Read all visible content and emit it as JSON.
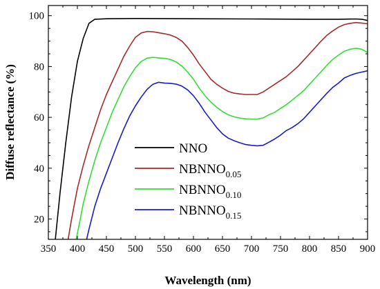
{
  "chart_data": {
    "type": "line",
    "xlabel": "Wavelength (nm)",
    "ylabel": "Diffuse reflectance (%)",
    "xlim": [
      350,
      900
    ],
    "ylim": [
      12,
      104
    ],
    "xticks": [
      350,
      400,
      450,
      500,
      550,
      600,
      650,
      700,
      750,
      800,
      850,
      900
    ],
    "yticks": [
      20,
      40,
      60,
      80,
      100
    ],
    "grid": false,
    "legend_position": "lower-center",
    "series": [
      {
        "name": "NNO",
        "name_base": "NNO",
        "name_sub": "",
        "color": "#000000",
        "points": [
          [
            362,
            12
          ],
          [
            370,
            30
          ],
          [
            380,
            50
          ],
          [
            390,
            68
          ],
          [
            400,
            82
          ],
          [
            410,
            91
          ],
          [
            420,
            97
          ],
          [
            430,
            98.6
          ],
          [
            450,
            98.8
          ],
          [
            500,
            98.9
          ],
          [
            600,
            98.8
          ],
          [
            700,
            98.7
          ],
          [
            800,
            98.6
          ],
          [
            850,
            98.6
          ],
          [
            880,
            98.7
          ],
          [
            890,
            98.6
          ],
          [
            900,
            98.1
          ]
        ]
      },
      {
        "name": "NBNNO0.05",
        "name_base": "NBNNO",
        "name_sub": "0.05",
        "color": "#a52a2a",
        "points": [
          [
            384,
            12
          ],
          [
            390,
            20
          ],
          [
            400,
            32
          ],
          [
            410,
            41
          ],
          [
            420,
            49
          ],
          [
            430,
            56
          ],
          [
            440,
            63
          ],
          [
            450,
            69
          ],
          [
            460,
            74
          ],
          [
            470,
            79
          ],
          [
            480,
            84
          ],
          [
            490,
            88
          ],
          [
            500,
            91.5
          ],
          [
            510,
            93.2
          ],
          [
            520,
            93.8
          ],
          [
            530,
            93.7
          ],
          [
            540,
            93.3
          ],
          [
            550,
            92.9
          ],
          [
            560,
            92.4
          ],
          [
            570,
            91.5
          ],
          [
            580,
            90
          ],
          [
            590,
            87.5
          ],
          [
            600,
            84.5
          ],
          [
            610,
            81
          ],
          [
            620,
            78
          ],
          [
            630,
            75
          ],
          [
            640,
            73
          ],
          [
            650,
            71.5
          ],
          [
            660,
            70.2
          ],
          [
            670,
            69.5
          ],
          [
            680,
            69.2
          ],
          [
            690,
            69
          ],
          [
            700,
            69
          ],
          [
            710,
            69
          ],
          [
            720,
            70
          ],
          [
            730,
            71.5
          ],
          [
            740,
            73
          ],
          [
            750,
            74.5
          ],
          [
            760,
            76
          ],
          [
            770,
            78
          ],
          [
            780,
            80
          ],
          [
            790,
            82.5
          ],
          [
            800,
            85
          ],
          [
            810,
            87.5
          ],
          [
            820,
            90
          ],
          [
            830,
            92.3
          ],
          [
            840,
            94
          ],
          [
            850,
            95.5
          ],
          [
            860,
            96.5
          ],
          [
            870,
            97
          ],
          [
            880,
            97.3
          ],
          [
            890,
            97.1
          ],
          [
            900,
            96.8
          ]
        ]
      },
      {
        "name": "NBNNO0.10",
        "name_base": "NBNNO",
        "name_sub": "0.10",
        "color": "#33dd33",
        "points": [
          [
            398,
            12
          ],
          [
            405,
            20
          ],
          [
            410,
            26
          ],
          [
            420,
            35
          ],
          [
            430,
            43
          ],
          [
            440,
            50
          ],
          [
            450,
            56
          ],
          [
            460,
            62
          ],
          [
            470,
            67
          ],
          [
            480,
            72
          ],
          [
            490,
            76
          ],
          [
            500,
            79.5
          ],
          [
            510,
            82
          ],
          [
            520,
            83.3
          ],
          [
            530,
            83.6
          ],
          [
            540,
            83.4
          ],
          [
            550,
            83.2
          ],
          [
            560,
            82.8
          ],
          [
            570,
            81.8
          ],
          [
            580,
            80.2
          ],
          [
            590,
            77.8
          ],
          [
            600,
            75
          ],
          [
            610,
            71.5
          ],
          [
            620,
            68.5
          ],
          [
            630,
            66
          ],
          [
            640,
            64
          ],
          [
            650,
            62.3
          ],
          [
            660,
            61
          ],
          [
            670,
            60.2
          ],
          [
            680,
            59.7
          ],
          [
            690,
            59.4
          ],
          [
            700,
            59.3
          ],
          [
            710,
            59.3
          ],
          [
            720,
            59.8
          ],
          [
            730,
            61
          ],
          [
            740,
            62
          ],
          [
            750,
            63.5
          ],
          [
            760,
            65
          ],
          [
            770,
            66.8
          ],
          [
            780,
            68.6
          ],
          [
            790,
            70.5
          ],
          [
            800,
            73
          ],
          [
            810,
            75.5
          ],
          [
            820,
            78
          ],
          [
            830,
            80.5
          ],
          [
            840,
            82.8
          ],
          [
            850,
            84.5
          ],
          [
            860,
            86
          ],
          [
            870,
            86.8
          ],
          [
            880,
            87.2
          ],
          [
            890,
            86.8
          ],
          [
            900,
            85.5
          ]
        ]
      },
      {
        "name": "NBNNO0.15",
        "name_base": "NBNNO",
        "name_sub": "0.15",
        "color": "#1a1acc",
        "points": [
          [
            416,
            12
          ],
          [
            420,
            16
          ],
          [
            430,
            25
          ],
          [
            440,
            32
          ],
          [
            450,
            38
          ],
          [
            460,
            44
          ],
          [
            470,
            50
          ],
          [
            480,
            55.5
          ],
          [
            490,
            60.5
          ],
          [
            500,
            64.5
          ],
          [
            510,
            68
          ],
          [
            520,
            71
          ],
          [
            530,
            73
          ],
          [
            540,
            73.8
          ],
          [
            550,
            73.5
          ],
          [
            560,
            73.4
          ],
          [
            570,
            73.1
          ],
          [
            580,
            72.3
          ],
          [
            590,
            70.8
          ],
          [
            600,
            68.5
          ],
          [
            610,
            65.5
          ],
          [
            620,
            62
          ],
          [
            630,
            59
          ],
          [
            640,
            56
          ],
          [
            650,
            53.5
          ],
          [
            660,
            51.8
          ],
          [
            670,
            50.8
          ],
          [
            680,
            50
          ],
          [
            690,
            49.3
          ],
          [
            700,
            49
          ],
          [
            710,
            48.8
          ],
          [
            720,
            49
          ],
          [
            730,
            50.2
          ],
          [
            740,
            51.5
          ],
          [
            750,
            53
          ],
          [
            760,
            54.8
          ],
          [
            770,
            56
          ],
          [
            780,
            57.5
          ],
          [
            790,
            59.5
          ],
          [
            800,
            62
          ],
          [
            810,
            64.5
          ],
          [
            820,
            67
          ],
          [
            830,
            69.5
          ],
          [
            840,
            71.8
          ],
          [
            850,
            73.5
          ],
          [
            860,
            75.5
          ],
          [
            870,
            76.5
          ],
          [
            880,
            77.3
          ],
          [
            890,
            77.8
          ],
          [
            900,
            78.3
          ]
        ]
      }
    ]
  }
}
